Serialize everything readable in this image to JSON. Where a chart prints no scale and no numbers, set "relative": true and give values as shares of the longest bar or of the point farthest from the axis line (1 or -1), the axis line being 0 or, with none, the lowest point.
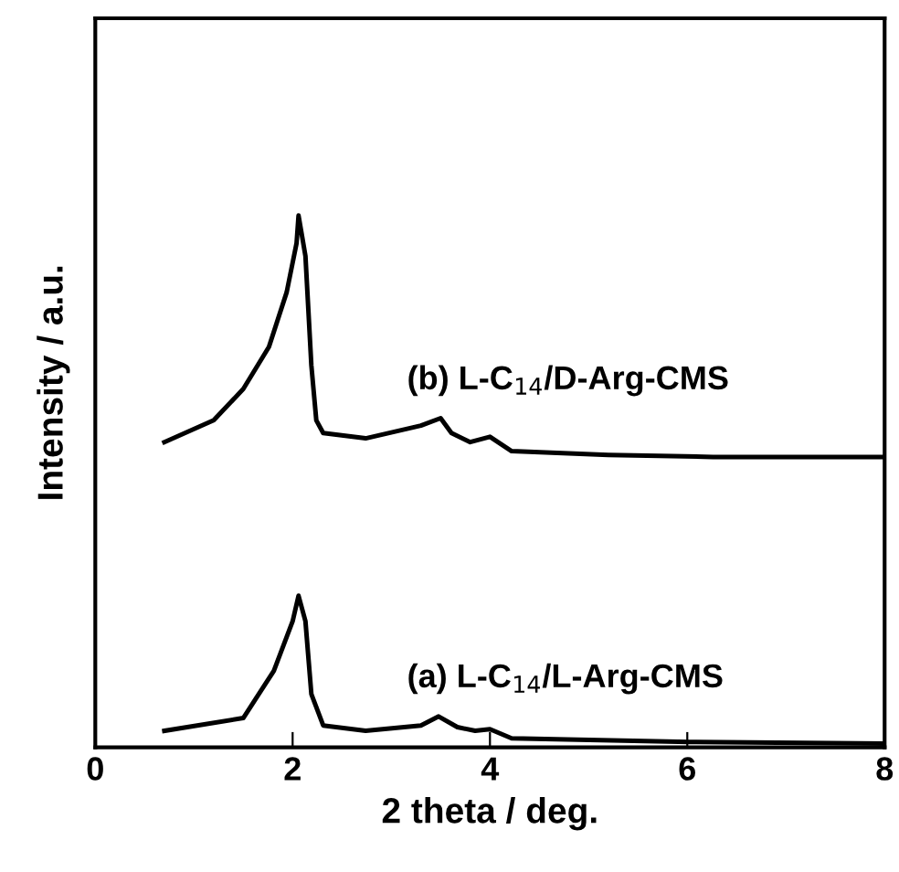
{
  "chart_data": {
    "type": "line",
    "relative": true,
    "xlabel": "2 theta / deg.",
    "ylabel": "Intensity / a.u.",
    "xlim": [
      0,
      8
    ],
    "xticks": [
      0,
      2,
      4,
      6,
      8
    ],
    "tick_labels": "x",
    "grid": false,
    "legend": false,
    "marker": "none",
    "line_style": "solid",
    "series": [
      {
        "name": "(b) L-C$_{14}$/D-Arg-CMS",
        "color": "#000000",
        "x": [
          0.7,
          1.2,
          1.5,
          1.76,
          1.94,
          2.04,
          2.06,
          2.13,
          2.19,
          2.24,
          2.31,
          2.74,
          3.3,
          3.5,
          3.61,
          3.8,
          4.0,
          4.22,
          5.2,
          6.26,
          8.0
        ],
        "values": [
          0.574,
          0.615,
          0.674,
          0.753,
          0.856,
          0.948,
          1.0,
          0.924,
          0.718,
          0.615,
          0.591,
          0.581,
          0.605,
          0.619,
          0.591,
          0.574,
          0.584,
          0.557,
          0.55,
          0.546,
          0.546
        ]
      },
      {
        "name": "(a) L-C$_{14}$/L-Arg-CMS",
        "color": "#000000",
        "x": [
          0.7,
          1.5,
          1.81,
          2.0,
          2.06,
          2.13,
          2.19,
          2.31,
          2.74,
          3.3,
          3.48,
          3.67,
          3.85,
          4.0,
          4.22,
          6.02,
          8.0
        ],
        "values": [
          0.031,
          0.055,
          0.144,
          0.237,
          0.285,
          0.237,
          0.1,
          0.041,
          0.031,
          0.041,
          0.058,
          0.038,
          0.031,
          0.034,
          0.017,
          0.01,
          0.007
        ]
      }
    ]
  }
}
